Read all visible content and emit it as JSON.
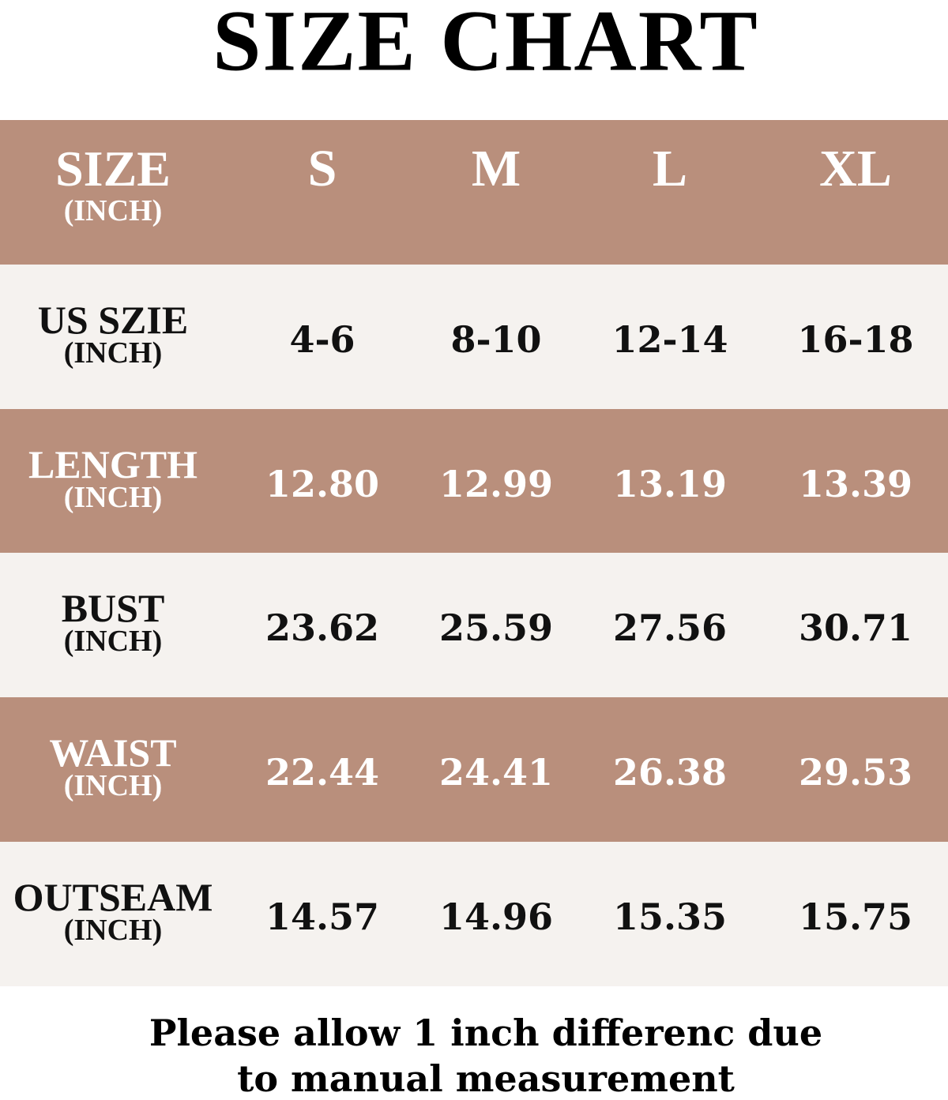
{
  "title": "SIZE CHART",
  "table": {
    "header": {
      "label": "SIZE",
      "unit": "(INCH)",
      "cells": [
        "S",
        "M",
        "L",
        "XL"
      ]
    },
    "rows": [
      {
        "label": "US SZIE",
        "unit": "(INCH)",
        "cells": [
          "4-6",
          "8-10",
          "12-14",
          "16-18"
        ]
      },
      {
        "label": "LENGTH",
        "unit": "(INCH)",
        "cells": [
          "12.80",
          "12.99",
          "13.19",
          "13.39"
        ]
      },
      {
        "label": "BUST",
        "unit": "(INCH)",
        "cells": [
          "23.62",
          "25.59",
          "27.56",
          "30.71"
        ]
      },
      {
        "label": "WAIST",
        "unit": "(INCH)",
        "cells": [
          "22.44",
          "24.41",
          "26.38",
          "29.53"
        ]
      },
      {
        "label": "OUTSEAM",
        "unit": "(INCH)",
        "cells": [
          "14.57",
          "14.96",
          "15.35",
          "15.75"
        ]
      }
    ]
  },
  "note": [
    "Please allow 1 inch differenc due",
    "to manual measurement"
  ]
}
